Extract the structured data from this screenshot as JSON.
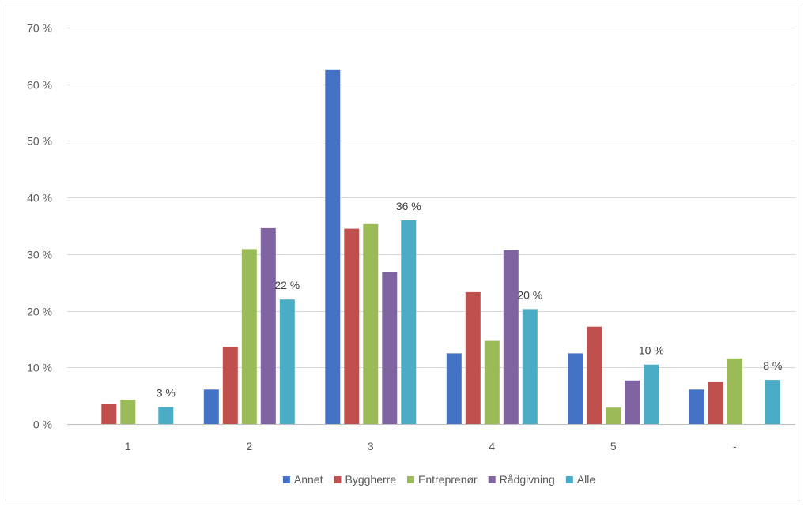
{
  "chart_data": {
    "type": "bar",
    "title": "",
    "xlabel": "",
    "ylabel": "",
    "categories": [
      "1",
      "2",
      "3",
      "4",
      "5",
      "-"
    ],
    "ylim": [
      0,
      70
    ],
    "yticks": [
      0,
      10,
      20,
      30,
      40,
      50,
      60,
      70
    ],
    "ytick_labels": [
      "0 %",
      "10 %",
      "20 %",
      "30 %",
      "40 %",
      "50 %",
      "60 %",
      "70 %"
    ],
    "grid": true,
    "legend_position": "bottom",
    "series": [
      {
        "name": "Annet",
        "color": "#4472c4",
        "values": [
          0,
          6.1,
          62.5,
          12.5,
          12.5,
          6.1
        ]
      },
      {
        "name": "Byggherre",
        "color": "#c0504d",
        "values": [
          3.5,
          13.6,
          34.5,
          23.3,
          17.2,
          7.4
        ]
      },
      {
        "name": "Entreprenør",
        "color": "#9bbb59",
        "values": [
          4.3,
          30.9,
          35.3,
          14.7,
          2.9,
          11.6
        ]
      },
      {
        "name": "Rådgivning",
        "color": "#8064a2",
        "values": [
          0,
          34.6,
          26.9,
          30.7,
          7.7,
          0
        ]
      },
      {
        "name": "Alle",
        "color": "#4bacc6",
        "values": [
          3,
          22,
          36,
          20.3,
          10.5,
          7.8
        ]
      }
    ],
    "data_labels": [
      {
        "series": "Alle",
        "category": "1",
        "text": "3 %"
      },
      {
        "series": "Alle",
        "category": "2",
        "text": "22 %"
      },
      {
        "series": "Alle",
        "category": "3",
        "text": "36 %"
      },
      {
        "series": "Alle",
        "category": "4",
        "text": "20 %"
      },
      {
        "series": "Alle",
        "category": "5",
        "text": "10 %"
      },
      {
        "series": "Alle",
        "category": "-",
        "text": "8 %"
      }
    ]
  }
}
